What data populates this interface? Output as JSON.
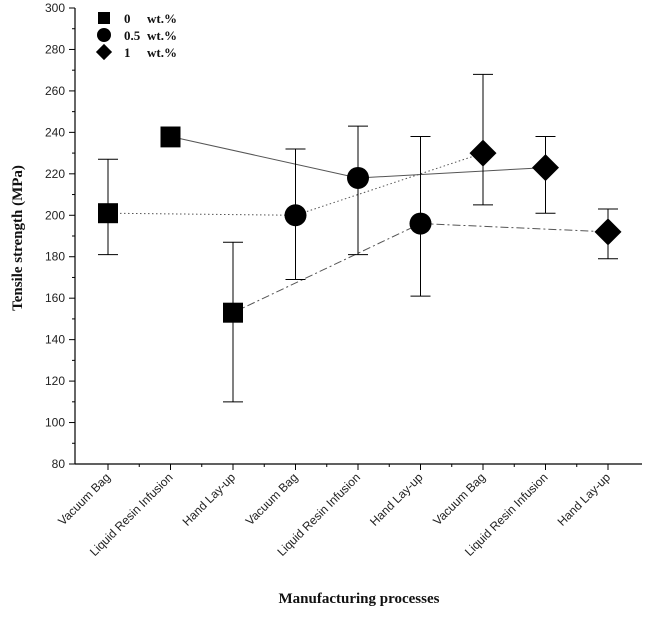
{
  "chart_data": {
    "type": "scatter",
    "title": "",
    "xlabel": "Manufacturing processes",
    "ylabel": "Tensile strength (MPa)",
    "ylim": [
      80,
      300
    ],
    "yticks": [
      80,
      100,
      120,
      140,
      160,
      180,
      200,
      220,
      240,
      260,
      280,
      300
    ],
    "categories": [
      "Vacuum Bag",
      "Liquid Resin Infusion",
      "Hand Lay-up",
      "Vacuum Bag",
      "Liquid Resin Infusion",
      "Hand Lay-up",
      "Vacuum Bag",
      "Liquid Resin Infusion",
      "Hand Lay-up"
    ],
    "legend": {
      "position": "top-left"
    },
    "series": [
      {
        "name": "0",
        "unit": "wt.%",
        "marker": "square",
        "points": [
          {
            "x": 0,
            "y": 201,
            "err_low": 181,
            "err_high": 227
          },
          {
            "x": 1,
            "y": 238,
            "err_low": 233,
            "err_high": 240
          },
          {
            "x": 2,
            "y": 153,
            "err_low": 110,
            "err_high": 187
          }
        ],
        "lines": [
          {
            "from": 0,
            "to": 3,
            "style": "dotted",
            "from_y": 201,
            "to_y": 200
          },
          {
            "from": 1,
            "to": 4,
            "style": "solid",
            "from_y": 238,
            "to_y": 218
          },
          {
            "from": 2,
            "to": 5,
            "style": "dashdot",
            "from_y": 153,
            "to_y": 196
          }
        ]
      },
      {
        "name": "0.5",
        "unit": "wt.%",
        "marker": "circle",
        "points": [
          {
            "x": 3,
            "y": 200,
            "err_low": 169,
            "err_high": 232
          },
          {
            "x": 4,
            "y": 218,
            "err_low": 181,
            "err_high": 243
          },
          {
            "x": 5,
            "y": 196,
            "err_low": 161,
            "err_high": 238
          }
        ],
        "lines": [
          {
            "from": 3,
            "to": 6,
            "style": "dotted",
            "from_y": 200,
            "to_y": 230
          },
          {
            "from": 4,
            "to": 7,
            "style": "solid",
            "from_y": 218,
            "to_y": 223
          },
          {
            "from": 5,
            "to": 8,
            "style": "dashdot",
            "from_y": 196,
            "to_y": 192
          }
        ]
      },
      {
        "name": "1",
        "unit": "wt.%",
        "marker": "diamond",
        "points": [
          {
            "x": 6,
            "y": 230,
            "err_low": 205,
            "err_high": 268
          },
          {
            "x": 7,
            "y": 223,
            "err_low": 201,
            "err_high": 238
          },
          {
            "x": 8,
            "y": 192,
            "err_low": 179,
            "err_high": 203
          }
        ],
        "lines": []
      }
    ]
  }
}
